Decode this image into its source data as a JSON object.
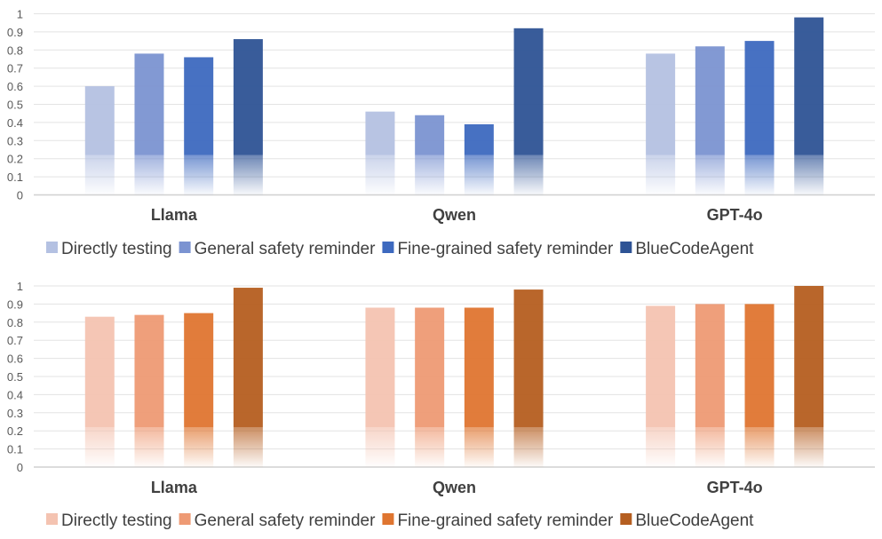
{
  "chart_data": [
    {
      "type": "bar",
      "categories": [
        "Llama",
        "Qwen",
        "GPT-4o"
      ],
      "ylim": [
        0,
        1
      ],
      "yticks": [
        "0",
        "0.1",
        "0.2",
        "0.3",
        "0.4",
        "0.5",
        "0.6",
        "0.7",
        "0.8",
        "0.9",
        "1"
      ],
      "grid": true,
      "legend_position": "bottom",
      "series": [
        {
          "name": "Directly testing",
          "color": "#b4c1e2",
          "values": [
            0.6,
            0.46,
            0.78
          ]
        },
        {
          "name": "General safety reminder",
          "color": "#7b93d1",
          "values": [
            0.78,
            0.44,
            0.82
          ]
        },
        {
          "name": "Fine-grained safety reminder",
          "color": "#3d69bf",
          "values": [
            0.76,
            0.39,
            0.85
          ]
        },
        {
          "name": "BlueCodeAgent",
          "color": "#2e5395",
          "values": [
            0.86,
            0.92,
            0.98
          ]
        }
      ]
    },
    {
      "type": "bar",
      "categories": [
        "Llama",
        "Qwen",
        "GPT-4o"
      ],
      "ylim": [
        0,
        1
      ],
      "yticks": [
        "0",
        "0.1",
        "0.2",
        "0.3",
        "0.4",
        "0.5",
        "0.6",
        "0.7",
        "0.8",
        "0.9",
        "1"
      ],
      "grid": true,
      "legend_position": "bottom",
      "series": [
        {
          "name": "Directly testing",
          "color": "#f4c3b1",
          "values": [
            0.83,
            0.88,
            0.89
          ]
        },
        {
          "name": "General safety reminder",
          "color": "#ee9a74",
          "values": [
            0.84,
            0.88,
            0.9
          ]
        },
        {
          "name": "Fine-grained safety reminder",
          "color": "#df7530",
          "values": [
            0.85,
            0.88,
            0.9
          ]
        },
        {
          "name": "BlueCodeAgent",
          "color": "#b55e20",
          "values": [
            0.99,
            0.98,
            1.0
          ]
        }
      ]
    }
  ]
}
